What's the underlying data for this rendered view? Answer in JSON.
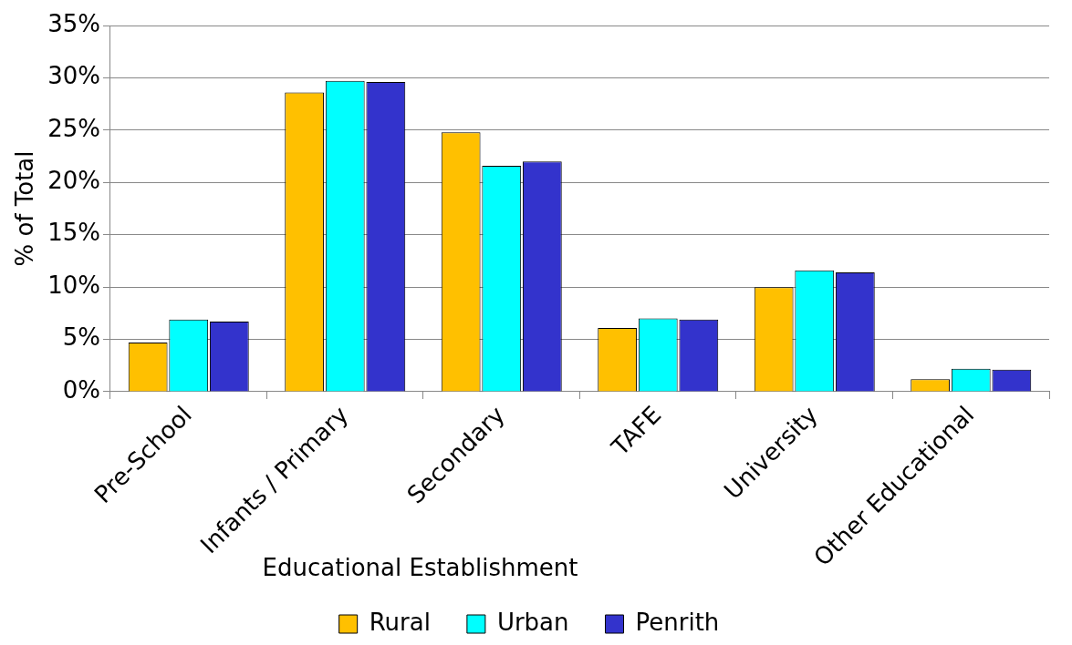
{
  "chart_data": {
    "type": "bar",
    "xlabel": "Educational Establishment",
    "ylabel": "% of Total",
    "categories": [
      "Pre-School",
      "Infants / Primary",
      "Secondary",
      "TAFE",
      "University",
      "Other Educational"
    ],
    "series": [
      {
        "name": "Rural",
        "color": "#ffc000",
        "values": [
          4.7,
          28.6,
          24.8,
          6.1,
          10.0,
          1.2
        ]
      },
      {
        "name": "Urban",
        "color": "#00ffff",
        "values": [
          6.9,
          29.7,
          21.6,
          7.0,
          11.6,
          2.2
        ]
      },
      {
        "name": "Penrith",
        "color": "#3333cc",
        "values": [
          6.7,
          29.6,
          22.0,
          6.9,
          11.4,
          2.1
        ]
      }
    ],
    "ylim": [
      0,
      35
    ],
    "yticks": [
      {
        "value": 0,
        "label": "0%"
      },
      {
        "value": 5,
        "label": "5%"
      },
      {
        "value": 10,
        "label": "10%"
      },
      {
        "value": 15,
        "label": "15%"
      },
      {
        "value": 20,
        "label": "20%"
      },
      {
        "value": 25,
        "label": "25%"
      },
      {
        "value": 30,
        "label": "30%"
      },
      {
        "value": 35,
        "label": "35%"
      }
    ],
    "grid": "y",
    "legend": "bottom"
  }
}
